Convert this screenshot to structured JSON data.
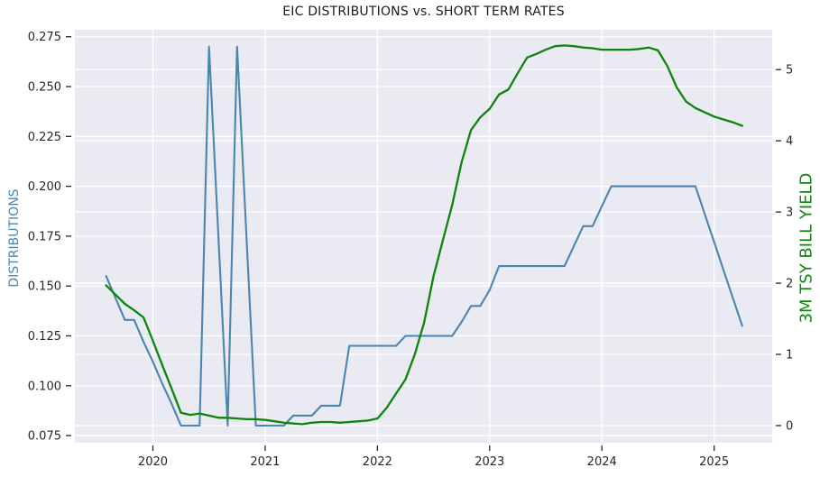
{
  "chart_data": {
    "type": "line",
    "title": "EIC DISTRIBUTIONS vs. SHORT TERM RATES",
    "grid": true,
    "legend": "none",
    "plot_bg_color": "#eaeaf2",
    "grid_color": "#ffffff",
    "tick_text_color": "#262626",
    "title_color": "#1a1a1a",
    "x_axis": {
      "tick_values": [
        2020,
        2021,
        2022,
        2023,
        2024,
        2025
      ],
      "tick_labels": [
        "2020",
        "2021",
        "2022",
        "2023",
        "2024",
        "2025"
      ],
      "range": [
        2019.305,
        2025.517
      ]
    },
    "left_axis": {
      "label": "DISTRIBUTIONS",
      "color": "#4c85ae",
      "tick_values": [
        0.075,
        0.1,
        0.125,
        0.15,
        0.175,
        0.2,
        0.225,
        0.25,
        0.275
      ],
      "tick_labels": [
        "0.075",
        "0.100",
        "0.125",
        "0.150",
        "0.175",
        "0.200",
        "0.225",
        "0.250",
        "0.275"
      ],
      "range": [
        0.0714,
        0.2785
      ]
    },
    "right_axis": {
      "label": "3M TSY BILL YIELD",
      "color": "#0d850d",
      "tick_values": [
        0,
        1,
        2,
        3,
        4,
        5
      ],
      "tick_labels": [
        "0",
        "1",
        "2",
        "3",
        "4",
        "5"
      ],
      "range": [
        -0.241,
        5.56
      ]
    },
    "x_dates": [
      "2019-08",
      "2019-09",
      "2019-10",
      "2019-11",
      "2019-12",
      "2020-01",
      "2020-02",
      "2020-03",
      "2020-04",
      "2020-05",
      "2020-06",
      "2020-07",
      "2020-08",
      "2020-09",
      "2020-10",
      "2020-11",
      "2020-12",
      "2021-01",
      "2021-02",
      "2021-03",
      "2021-04",
      "2021-05",
      "2021-06",
      "2021-07",
      "2021-08",
      "2021-09",
      "2021-10",
      "2021-11",
      "2021-12",
      "2022-01",
      "2022-02",
      "2022-03",
      "2022-04",
      "2022-05",
      "2022-06",
      "2022-07",
      "2022-08",
      "2022-09",
      "2022-10",
      "2022-11",
      "2022-12",
      "2023-01",
      "2023-02",
      "2023-03",
      "2023-04",
      "2023-05",
      "2023-06",
      "2023-07",
      "2023-08",
      "2023-09",
      "2023-10",
      "2023-11",
      "2023-12",
      "2024-01",
      "2024-02",
      "2024-03",
      "2024-04",
      "2024-05",
      "2024-06",
      "2024-07",
      "2024-08",
      "2024-09",
      "2024-10",
      "2024-11",
      "2024-12",
      "2025-01",
      "2025-02",
      "2025-03",
      "2025-04"
    ],
    "series": [
      {
        "name": "DISTRIBUTIONS",
        "axis": "left",
        "color": "#4c85ae",
        "values": [
          0.155,
          0.144,
          0.133,
          0.133,
          0.122,
          0.112,
          0.101,
          0.091,
          0.08,
          0.08,
          0.08,
          0.27,
          0.175,
          0.08,
          0.27,
          0.175,
          0.08,
          0.08,
          0.08,
          0.08,
          0.085,
          0.085,
          0.085,
          0.09,
          0.09,
          0.09,
          0.12,
          0.12,
          0.12,
          0.12,
          0.12,
          0.12,
          0.125,
          0.125,
          0.125,
          0.125,
          0.125,
          0.125,
          0.132,
          0.14,
          0.14,
          0.148,
          0.16,
          0.16,
          0.16,
          0.16,
          0.16,
          0.16,
          0.16,
          0.16,
          0.17,
          0.18,
          0.18,
          0.19,
          0.2,
          0.2,
          0.2,
          0.2,
          0.2,
          0.2,
          0.2,
          0.2,
          0.2,
          0.2,
          0.186,
          0.172,
          0.158,
          0.144,
          0.13
        ]
      },
      {
        "name": "3M TSY BILL YIELD",
        "axis": "right",
        "color": "#0d850d",
        "values": [
          1.97,
          1.84,
          1.71,
          1.62,
          1.52,
          1.19,
          0.85,
          0.52,
          0.18,
          0.15,
          0.17,
          0.14,
          0.11,
          0.11,
          0.1,
          0.09,
          0.09,
          0.08,
          0.06,
          0.04,
          0.03,
          0.02,
          0.04,
          0.05,
          0.05,
          0.04,
          0.05,
          0.06,
          0.07,
          0.1,
          0.25,
          0.45,
          0.65,
          1.0,
          1.45,
          2.1,
          2.6,
          3.1,
          3.7,
          4.15,
          4.33,
          4.45,
          4.65,
          4.72,
          4.95,
          5.17,
          5.22,
          5.28,
          5.33,
          5.34,
          5.33,
          5.31,
          5.3,
          5.28,
          5.28,
          5.28,
          5.28,
          5.29,
          5.31,
          5.27,
          5.05,
          4.75,
          4.55,
          4.46,
          4.4,
          4.34,
          4.3,
          4.26,
          4.21
        ]
      }
    ]
  }
}
